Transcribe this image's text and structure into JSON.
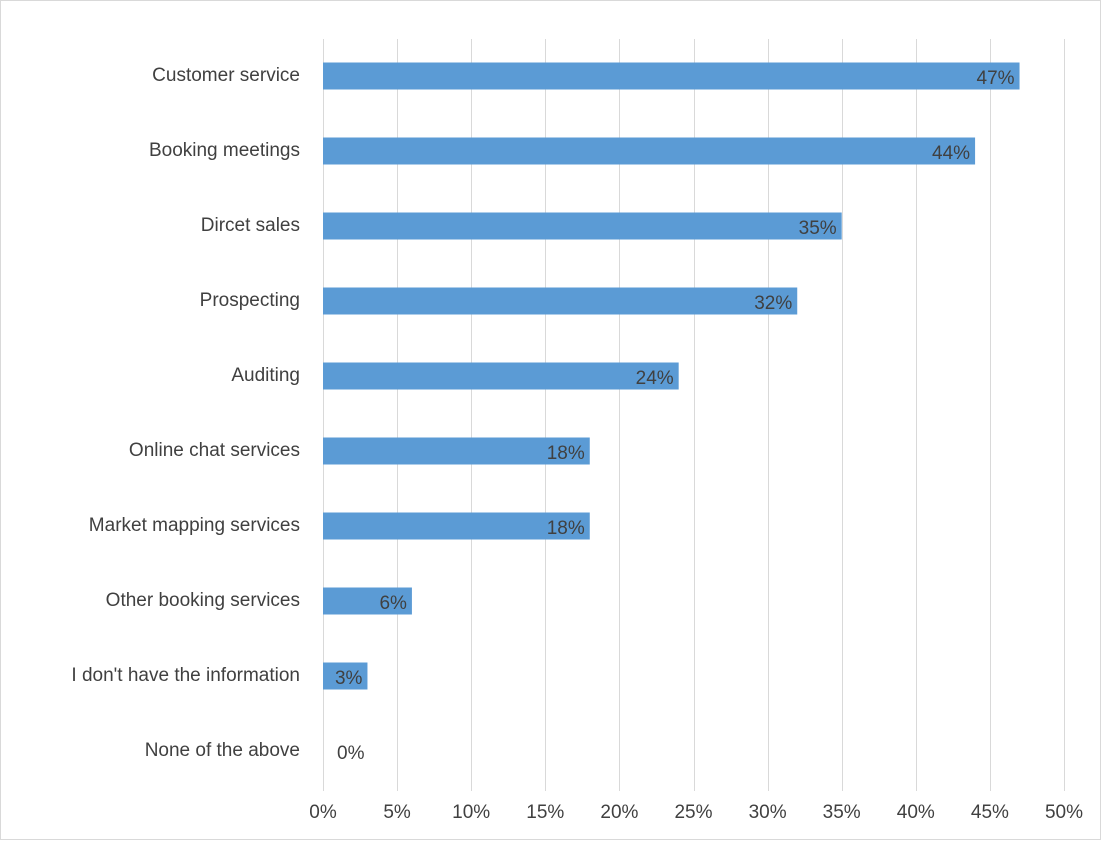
{
  "chart_data": {
    "type": "bar",
    "orientation": "horizontal",
    "categories": [
      "Customer service",
      "Booking meetings",
      "Dircet sales",
      "Prospecting",
      "Auditing",
      "Online chat services",
      "Market mapping services",
      "Other booking services",
      "I don't have the information",
      "None of the above"
    ],
    "values": [
      47,
      44,
      35,
      32,
      24,
      18,
      18,
      6,
      3,
      0
    ],
    "data_labels": [
      "47%",
      "44%",
      "35%",
      "32%",
      "24%",
      "18%",
      "18%",
      "6%",
      "3%",
      "0%"
    ],
    "x_ticks": [
      "0%",
      "5%",
      "10%",
      "15%",
      "20%",
      "25%",
      "30%",
      "35%",
      "40%",
      "45%",
      "50%"
    ],
    "xlim": [
      0,
      50
    ],
    "grid": true,
    "bar_color": "#5b9bd5",
    "title": "",
    "xlabel": "",
    "ylabel": ""
  }
}
